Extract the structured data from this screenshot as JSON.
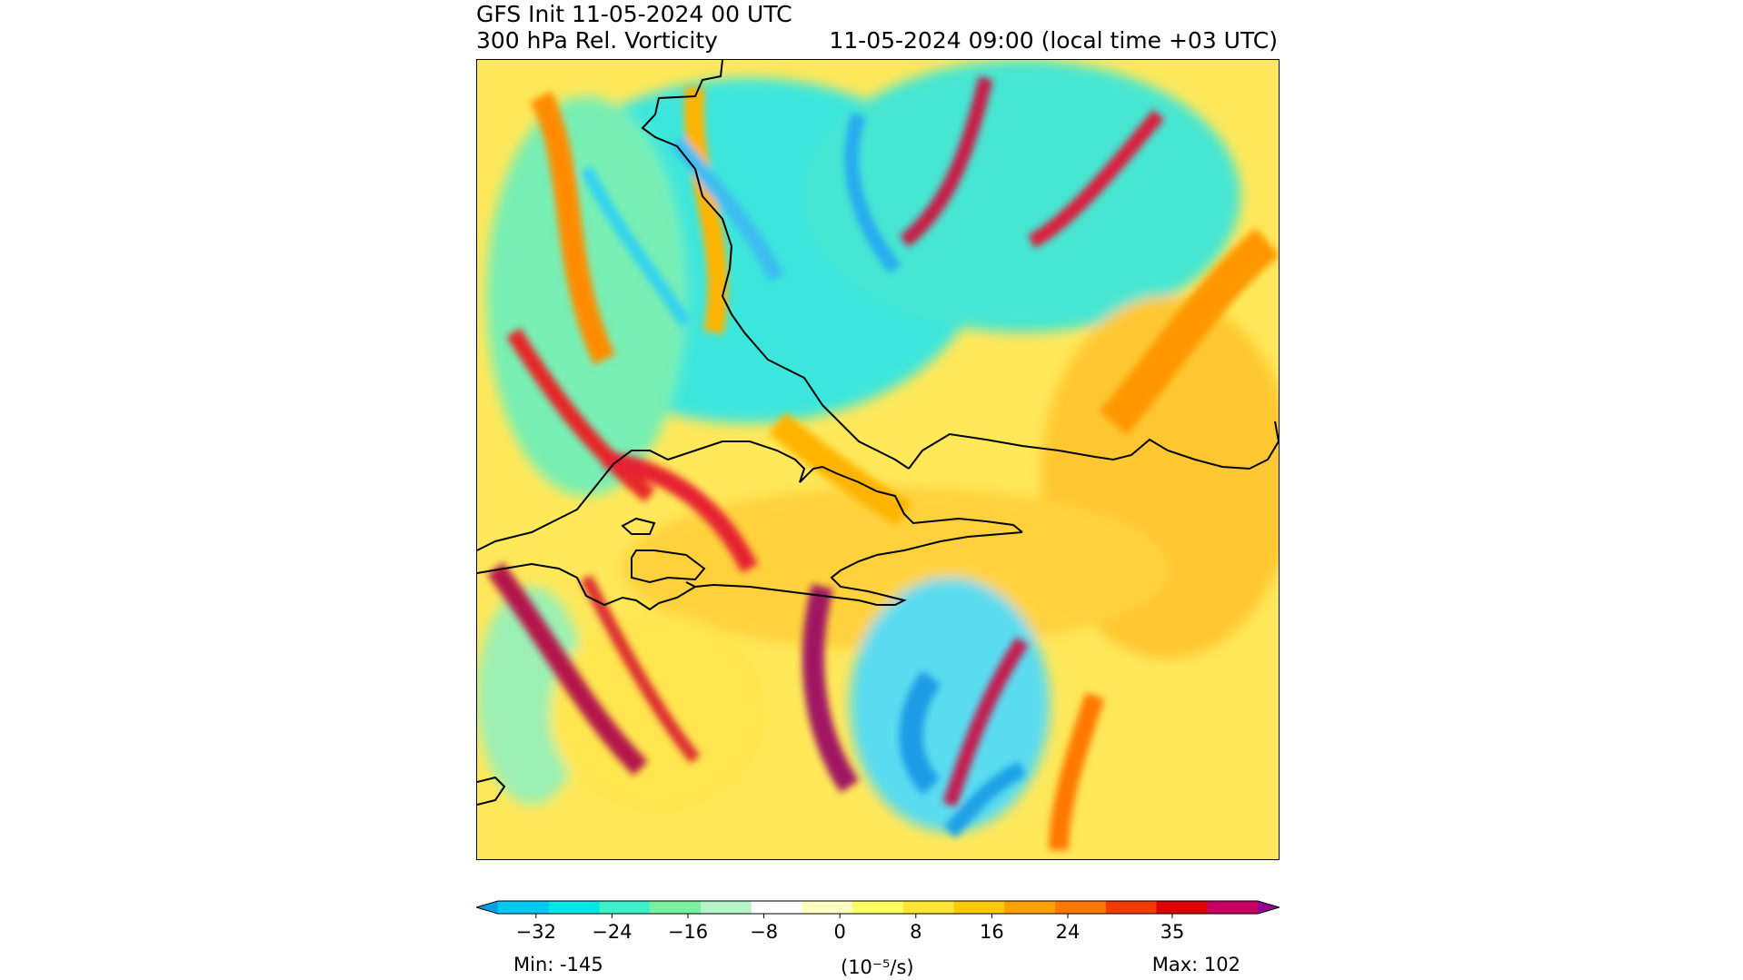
{
  "title_left_line1": "GFS Init 11-05-2024 00 UTC",
  "title_left_line2": "300 hPa Rel. Vorticity",
  "title_right": "11-05-2024 09:00 (local time +03 UTC)",
  "colorbar": {
    "tick_labels": [
      "−32",
      "−24",
      "−16",
      "−8",
      "0",
      "8",
      "16",
      "24",
      "35"
    ],
    "tick_values": [
      -32,
      -24,
      -16,
      -8,
      0,
      8,
      16,
      24,
      35
    ],
    "range": [
      -36,
      44
    ],
    "units": "(10⁻⁵/s)",
    "min_label": "Min: -145",
    "max_label": "Max: 102",
    "extend": "both",
    "colors": [
      "#00a2e6",
      "#00c8f0",
      "#00e6e6",
      "#3cf0c8",
      "#78f0a0",
      "#b4f5c8",
      "#ffffff",
      "#ffffc0",
      "#ffff64",
      "#ffe632",
      "#ffc800",
      "#ffa000",
      "#ff7800",
      "#f03c00",
      "#dc0000",
      "#c80064",
      "#960096"
    ]
  },
  "map": {
    "field": "300 hPa relative vorticity",
    "colormap_note": "blue negative, red/purple positive"
  }
}
